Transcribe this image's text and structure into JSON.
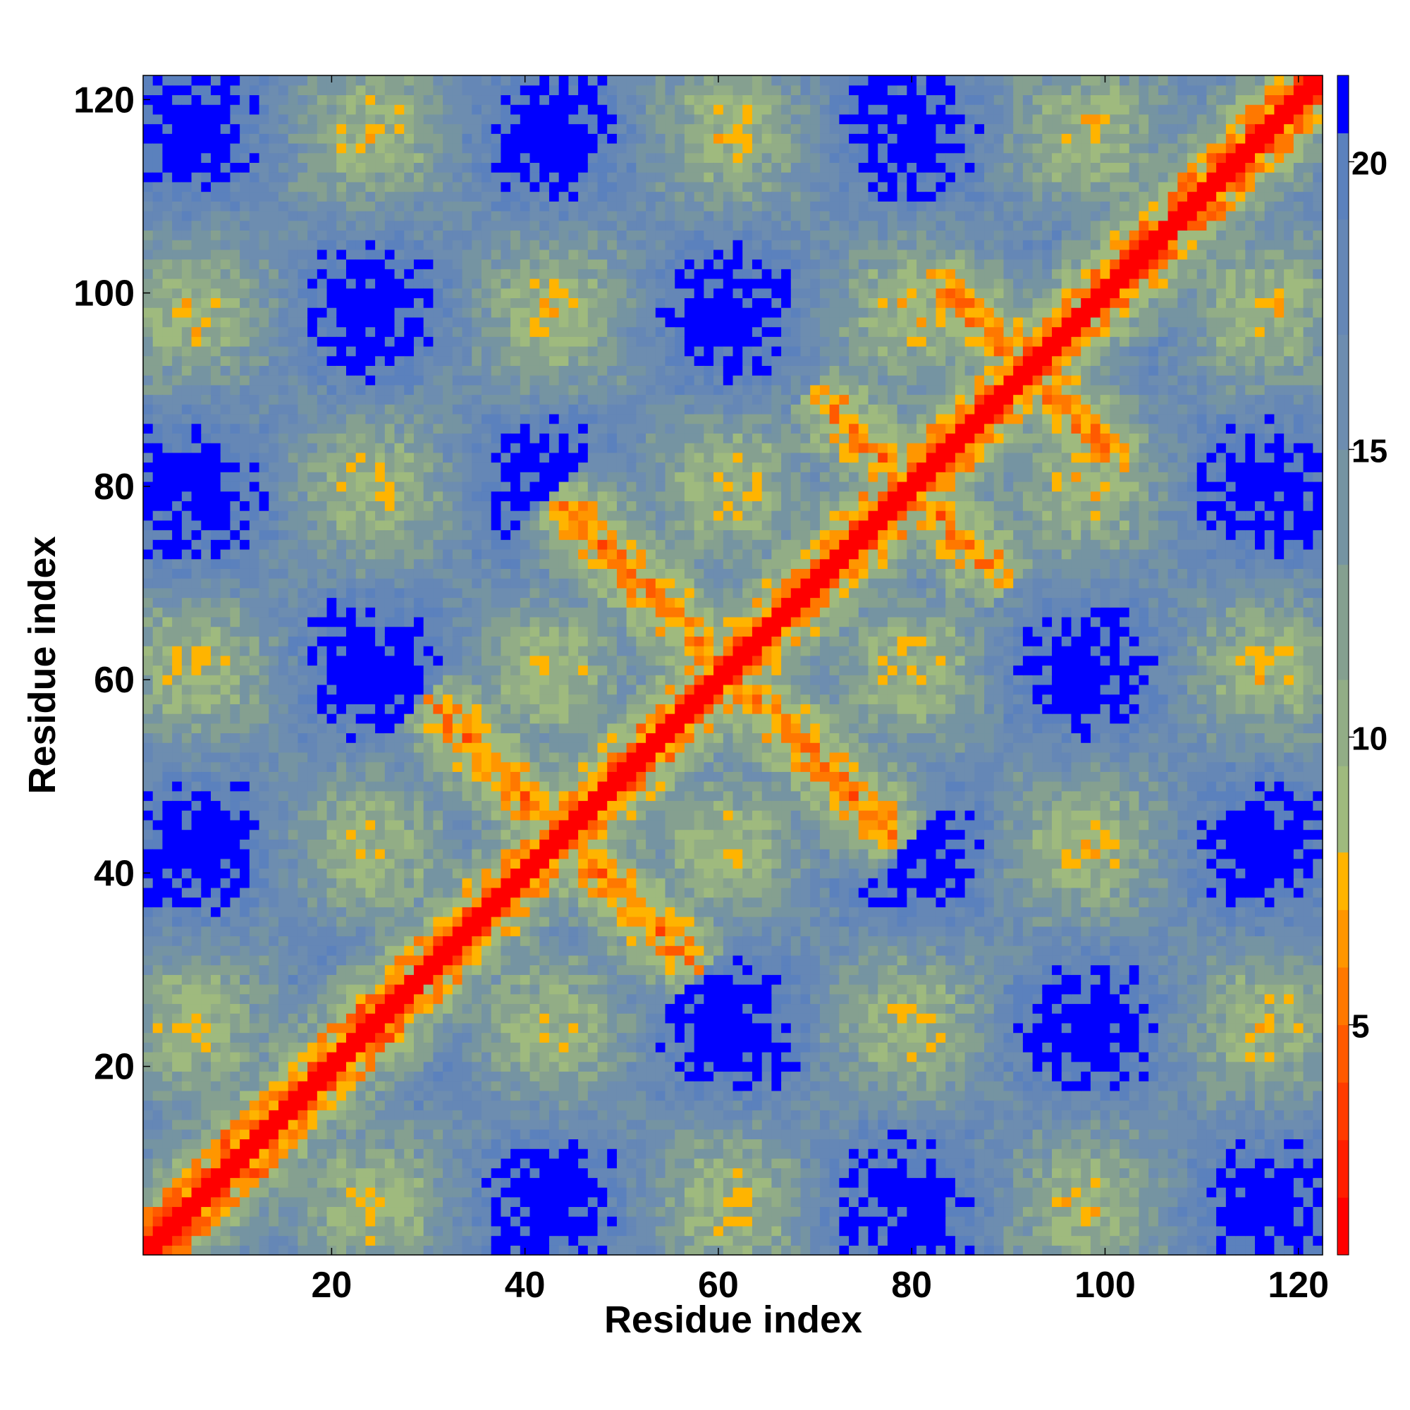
{
  "chart_data": {
    "type": "heatmap",
    "title": "",
    "xlabel": "Residue index",
    "ylabel": "Residue index",
    "xlim": [
      1,
      122
    ],
    "ylim": [
      1,
      122
    ],
    "x_ticks": [
      20,
      40,
      60,
      80,
      100,
      120
    ],
    "y_ticks": [
      20,
      40,
      60,
      80,
      100,
      120
    ],
    "x_tick_labels": [
      "20",
      "40",
      "60",
      "80",
      "100",
      "120"
    ],
    "y_tick_labels": [
      "20",
      "40",
      "60",
      "80",
      "100",
      "120"
    ],
    "n_residues": 122,
    "colorbar": {
      "range": [
        1,
        21.5
      ],
      "ticks": [
        5,
        10,
        15,
        20
      ],
      "tick_labels": [
        "5",
        "10",
        "15",
        "20"
      ],
      "levels": [
        {
          "upto": 2,
          "color": "#ff0000"
        },
        {
          "upto": 3,
          "color": "#ff1e00"
        },
        {
          "upto": 4,
          "color": "#ff3c00"
        },
        {
          "upto": 5,
          "color": "#ff5a00"
        },
        {
          "upto": 6,
          "color": "#ff7800"
        },
        {
          "upto": 7,
          "color": "#ff9600"
        },
        {
          "upto": 8,
          "color": "#ffb400"
        },
        {
          "upto": 9.5,
          "color": "#9fba7e"
        },
        {
          "upto": 11,
          "color": "#92ad86"
        },
        {
          "upto": 13,
          "color": "#85a090"
        },
        {
          "upto": 15,
          "color": "#7594a2"
        },
        {
          "upto": 17,
          "color": "#6d8db0"
        },
        {
          "upto": 19,
          "color": "#6587b6"
        },
        {
          "upto": 20.5,
          "color": "#5b81bd"
        },
        {
          "upto": 21.5,
          "color": "#0000ff"
        }
      ]
    },
    "structure": {
      "diagonal": "contact (distance < 2) along i = j",
      "helices": [
        {
          "start": 1,
          "end": 27
        },
        {
          "start": 103,
          "end": 122
        }
      ],
      "antiparallel_contacts": [
        {
          "center": [
            44,
            44
          ],
          "half_length": 14
        },
        {
          "center": [
            61,
            61
          ],
          "half_length": 18
        },
        {
          "center": [
            80,
            80
          ],
          "half_length": 10
        },
        {
          "center": [
            92,
            92
          ],
          "half_length": 10
        },
        {
          "center": [
            62,
            50
          ],
          "half_length": 7
        },
        {
          "center": [
            85,
            76
          ],
          "half_length": 7
        },
        {
          "center": [
            100,
            92
          ],
          "half_length": 6
        }
      ]
    }
  }
}
